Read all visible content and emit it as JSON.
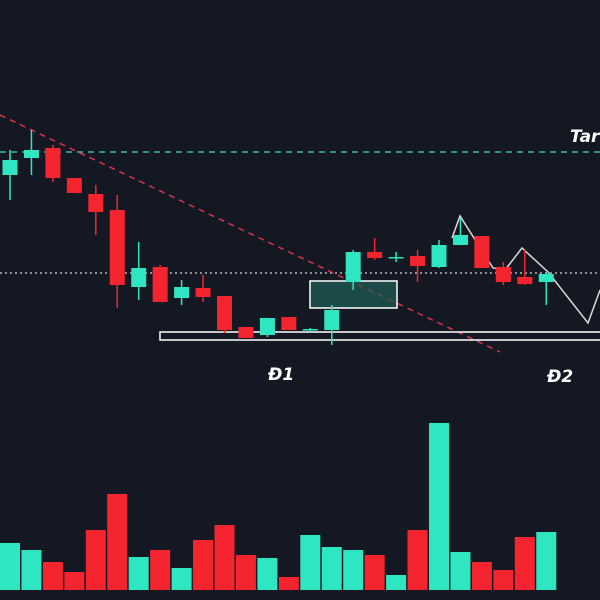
{
  "chart_data": {
    "type": "candlestick",
    "annotations": [
      "Tar",
      "Đ1",
      "Đ2"
    ],
    "up_color": "#2ee6c2",
    "down_color": "#f5252f",
    "ylim": [
      0,
      600
    ],
    "volume_ylim": [
      0,
      200
    ],
    "open": [
      425,
      442,
      452,
      422,
      406,
      390,
      313,
      333,
      302,
      312,
      304,
      273,
      265,
      283,
      270,
      270,
      318,
      348,
      342,
      344,
      333,
      355,
      364,
      333,
      323,
      318
    ],
    "high": [
      450,
      470,
      455,
      422,
      415,
      405,
      358,
      335,
      320,
      325,
      304,
      273,
      282,
      283,
      272,
      295,
      350,
      362,
      348,
      350,
      360,
      382,
      364,
      338,
      350,
      328
    ],
    "low": [
      400,
      425,
      418,
      407,
      365,
      292,
      300,
      298,
      295,
      298,
      267,
      262,
      263,
      270,
      268,
      255,
      310,
      340,
      338,
      318,
      332,
      355,
      332,
      315,
      315,
      295
    ],
    "close": [
      440,
      450,
      422,
      407,
      388,
      315,
      332,
      298,
      313,
      303,
      270,
      262,
      282,
      270,
      271,
      290,
      348,
      342,
      343,
      334,
      355,
      365,
      332,
      318,
      316,
      326
    ],
    "volume": [
      47,
      40,
      28,
      18,
      60,
      96,
      33,
      40,
      22,
      50,
      65,
      35,
      32,
      13,
      55,
      43,
      40,
      35,
      15,
      60,
      167,
      38,
      28,
      20,
      53,
      58
    ]
  }
}
